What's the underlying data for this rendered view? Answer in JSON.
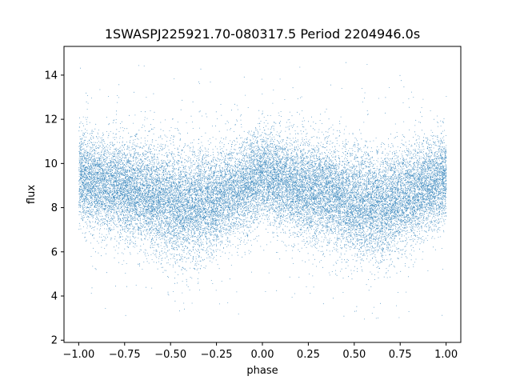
{
  "chart_data": {
    "type": "scatter",
    "title": "1SWASPJ225921.70-080317.5 Period 2204946.0s",
    "xlabel": "phase",
    "ylabel": "flux",
    "xlim": [
      -1.08,
      1.08
    ],
    "ylim": [
      1.9,
      15.3
    ],
    "x_ticks": [
      -1.0,
      -0.75,
      -0.5,
      -0.25,
      0.0,
      0.25,
      0.5,
      0.75,
      1.0
    ],
    "x_tick_labels": [
      "−1.00",
      "−0.75",
      "−0.50",
      "−0.25",
      "0.00",
      "0.25",
      "0.50",
      "0.75",
      "1.00"
    ],
    "y_ticks": [
      2,
      4,
      6,
      8,
      10,
      12,
      14
    ],
    "y_tick_labels": [
      "2",
      "4",
      "6",
      "8",
      "10",
      "12",
      "14"
    ],
    "grid": false,
    "legend": "none",
    "marker_color": "#1f77b4",
    "series": [
      {
        "profile": {
          "phase": [
            -1.0,
            -0.875,
            -0.75,
            -0.625,
            -0.5,
            -0.375,
            -0.25,
            -0.125,
            0.0,
            0.125,
            0.25,
            0.375,
            0.5,
            0.625,
            0.75,
            0.875,
            1.0
          ],
          "median_flux": [
            9.4,
            9.1,
            8.8,
            8.6,
            8.2,
            8.1,
            8.4,
            8.9,
            9.5,
            9.2,
            8.8,
            8.6,
            8.2,
            8.1,
            8.4,
            8.9,
            9.4
          ],
          "spread": [
            1.0,
            1.0,
            1.1,
            1.1,
            1.2,
            1.2,
            1.1,
            1.0,
            1.0,
            1.0,
            1.1,
            1.1,
            1.2,
            1.2,
            1.1,
            1.0,
            1.0
          ]
        },
        "point_count": 26000
      }
    ]
  }
}
